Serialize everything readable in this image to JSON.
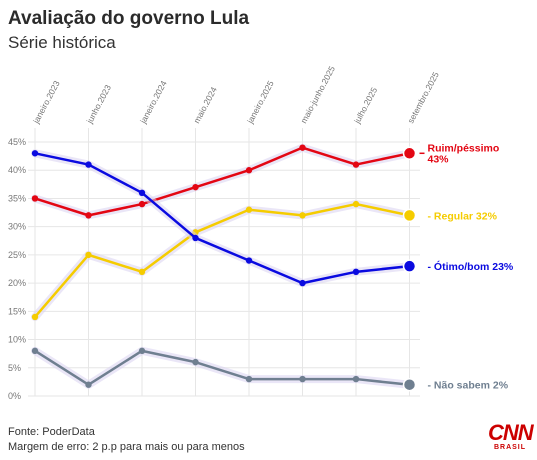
{
  "header": {
    "title": "Avaliação do governo Lula",
    "subtitle": "Série histórica"
  },
  "footer": {
    "source": "Fonte: PoderData",
    "margin": "Margem de erro: 2 p.p para mais ou para menos"
  },
  "logo": {
    "name": "CNN",
    "sub": "BRASIL"
  },
  "chart_data": {
    "type": "line",
    "x_ticks": [
      "janeiro.2023",
      "junho.2023",
      "janeiro.2024",
      "maio.2024",
      "janeiro.2025",
      "maio-junho.2025",
      "julho.2025",
      "setembro.2025"
    ],
    "y_ticks": [
      "0%",
      "5%",
      "10%",
      "15%",
      "20%",
      "25%",
      "30%",
      "35%",
      "40%",
      "45%"
    ],
    "ylim": [
      0,
      45
    ],
    "grid": true,
    "series": [
      {
        "key": "ruim",
        "label_lines": [
          "Ruim/péssimo",
          "43%"
        ],
        "color": "#e30613",
        "values": [
          35,
          32,
          34,
          37,
          40,
          44,
          41,
          43
        ]
      },
      {
        "key": "regular",
        "label_lines": [
          "Regular 32%"
        ],
        "color": "#f5cc00",
        "values": [
          14,
          25,
          22,
          29,
          33,
          32,
          34,
          32
        ]
      },
      {
        "key": "otimo",
        "label_lines": [
          "Ótimo/bom 23%"
        ],
        "color": "#0a0ae0",
        "values": [
          43,
          41,
          36,
          28,
          24,
          20,
          22,
          23
        ]
      },
      {
        "key": "naosabem",
        "label_lines": [
          "Não sabem 2%"
        ],
        "color": "#6f7f90",
        "values": [
          8,
          2,
          8,
          6,
          3,
          3,
          3,
          2
        ]
      }
    ]
  }
}
